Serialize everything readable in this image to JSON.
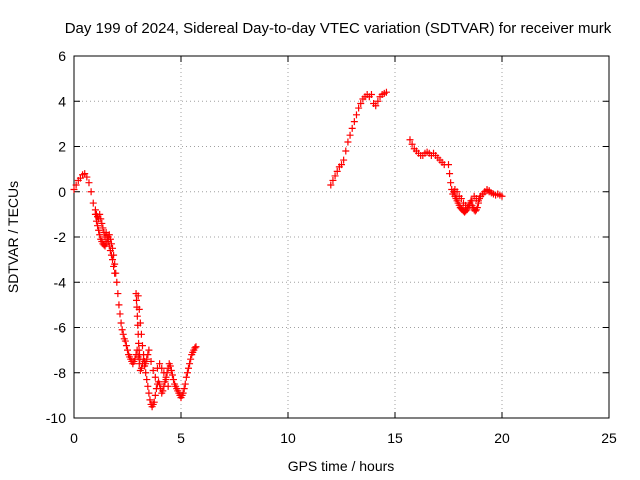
{
  "chart_data": {
    "type": "scatter",
    "title": "Day 199 of 2024, Sidereal Day-to-day VTEC variation (SDTVAR) for receiver murk",
    "xlabel": "GPS time / hours",
    "ylabel": "SDTVAR / TECUs",
    "xlim": [
      0,
      25
    ],
    "ylim": [
      -10,
      6
    ],
    "xticks": [
      0,
      5,
      10,
      15,
      20,
      25
    ],
    "yticks": [
      -10,
      -8,
      -6,
      -4,
      -2,
      0,
      2,
      4,
      6
    ],
    "grid": true,
    "marker": "plus",
    "series_color": "#ff0000",
    "series": [
      {
        "name": "segment-1",
        "x": [
          0.0,
          0.1,
          0.2,
          0.3,
          0.4,
          0.5,
          0.6,
          0.7,
          0.8,
          0.9,
          1.0,
          1.05,
          1.1,
          1.15,
          1.2,
          1.25,
          1.3,
          1.35,
          1.4,
          1.45,
          1.5,
          1.55,
          1.6,
          1.65,
          1.7,
          1.75,
          1.8,
          1.85,
          1.9,
          1.95,
          2.0,
          2.05,
          2.1,
          2.15,
          2.2,
          2.25,
          2.3,
          2.35,
          2.4,
          2.45,
          2.5,
          2.55,
          2.6,
          2.65,
          2.7,
          2.75,
          2.8,
          2.85,
          2.9,
          2.95,
          3.0,
          3.05,
          3.1,
          3.15,
          3.2,
          3.25,
          3.3,
          3.35,
          3.4,
          3.45,
          3.5,
          3.55,
          3.6,
          3.65,
          3.7,
          3.75,
          3.8,
          3.85,
          3.9,
          3.95,
          4.0,
          4.05,
          4.1,
          4.15,
          4.2,
          4.25,
          4.3,
          4.35,
          4.4,
          4.45,
          4.5,
          4.55,
          4.6,
          4.65,
          4.7,
          4.75,
          4.8,
          4.85,
          4.9,
          4.95,
          5.0,
          5.05,
          5.1,
          5.15,
          5.2,
          5.25,
          5.3,
          5.35,
          5.4,
          5.45,
          5.5,
          5.55,
          5.6,
          5.65,
          5.7,
          1.0,
          1.05,
          1.1,
          1.15,
          1.2,
          1.25,
          1.3,
          1.35,
          1.4,
          1.45,
          1.5,
          1.55,
          1.6,
          1.65,
          1.7,
          1.75,
          1.8,
          1.85,
          1.9,
          3.0,
          3.05,
          3.1,
          3.15,
          3.2,
          3.25,
          3.3,
          3.35,
          3.4,
          3.45,
          3.5,
          3.6,
          3.7,
          3.8,
          3.9,
          4.0,
          4.1,
          4.2,
          4.3,
          4.4,
          2.9,
          2.92,
          2.94,
          2.96,
          2.98,
          3.0,
          3.02,
          3.04,
          3.06,
          3.08
        ],
        "y": [
          0.1,
          0.3,
          0.5,
          0.6,
          0.75,
          0.8,
          0.65,
          0.4,
          0.0,
          -0.5,
          -1.0,
          -1.3,
          -1.5,
          -1.7,
          -1.9,
          -2.1,
          -2.2,
          -2.3,
          -2.35,
          -2.4,
          -2.3,
          -2.1,
          -2.0,
          -1.9,
          -2.1,
          -2.3,
          -2.5,
          -2.8,
          -3.2,
          -3.6,
          -4.0,
          -4.5,
          -5.0,
          -5.4,
          -5.8,
          -6.1,
          -6.3,
          -6.5,
          -6.6,
          -6.8,
          -7.0,
          -7.2,
          -7.3,
          -7.4,
          -7.5,
          -7.6,
          -7.5,
          -7.4,
          -7.2,
          -7.0,
          -7.3,
          -7.6,
          -7.9,
          -7.8,
          -7.6,
          -7.4,
          -7.7,
          -8.0,
          -8.3,
          -8.6,
          -8.9,
          -9.2,
          -9.4,
          -9.5,
          -9.4,
          -9.3,
          -9.0,
          -8.7,
          -8.5,
          -8.4,
          -8.5,
          -8.7,
          -8.9,
          -8.8,
          -8.6,
          -8.4,
          -8.2,
          -8.0,
          -7.8,
          -7.6,
          -7.7,
          -7.9,
          -8.1,
          -8.3,
          -8.5,
          -8.6,
          -8.7,
          -8.8,
          -8.9,
          -9.0,
          -9.1,
          -9.0,
          -8.9,
          -8.7,
          -8.5,
          -8.2,
          -8.0,
          -7.8,
          -7.6,
          -7.4,
          -7.2,
          -7.1,
          -7.0,
          -6.9,
          -6.85,
          -0.8,
          -1.0,
          -1.1,
          -1.2,
          -1.0,
          -1.2,
          -1.4,
          -1.6,
          -1.8,
          -2.0,
          -1.8,
          -2.0,
          -2.2,
          -2.4,
          -2.6,
          -2.8,
          -3.0,
          -3.3,
          -3.6,
          -4.6,
          -5.2,
          -5.8,
          -6.3,
          -6.8,
          -7.2,
          -7.5,
          -7.6,
          -7.4,
          -7.2,
          -7.0,
          -7.5,
          -7.9,
          -8.2,
          -7.8,
          -7.6,
          -7.8,
          -8.0,
          -8.3,
          -8.6,
          -4.5,
          -4.8,
          -5.1,
          -5.5,
          -5.9,
          -6.3,
          -6.7,
          -7.0,
          -7.2,
          -7.4
        ]
      },
      {
        "name": "segment-2",
        "x": [
          12.0,
          12.1,
          12.2,
          12.3,
          12.4,
          12.5,
          12.6,
          12.7,
          12.8,
          12.9,
          13.0,
          13.1,
          13.2,
          13.3,
          13.4,
          13.5,
          13.6,
          13.7,
          13.8,
          13.9,
          14.0,
          14.1,
          14.2,
          14.3,
          14.4,
          14.5,
          14.6
        ],
        "y": [
          0.3,
          0.5,
          0.7,
          0.9,
          1.1,
          1.2,
          1.4,
          1.8,
          2.2,
          2.5,
          2.8,
          3.1,
          3.4,
          3.7,
          3.9,
          4.1,
          4.2,
          4.3,
          4.2,
          4.3,
          3.9,
          3.8,
          4.0,
          4.2,
          4.3,
          4.35,
          4.4
        ]
      },
      {
        "name": "segment-3",
        "x": [
          15.7,
          15.8,
          15.9,
          16.0,
          16.1,
          16.2,
          16.3,
          16.4,
          16.5,
          16.6,
          16.7,
          16.8,
          16.9,
          17.0,
          17.1,
          17.2,
          17.3,
          17.5,
          17.55,
          17.6,
          17.65,
          17.7,
          17.75,
          17.8,
          17.85,
          17.9,
          17.95,
          18.0,
          18.05,
          18.1,
          18.15,
          18.2,
          18.25,
          18.3,
          18.35,
          18.4,
          18.45,
          18.5,
          18.55,
          18.6,
          18.65,
          18.7,
          18.75,
          18.8,
          18.85,
          18.9,
          18.95,
          19.0,
          19.1,
          19.2,
          19.3,
          19.4,
          19.5,
          19.6,
          19.7,
          19.8,
          19.9,
          20.0,
          17.8,
          17.9,
          18.0,
          18.1,
          18.2,
          18.3,
          18.4,
          18.5,
          18.6,
          18.7,
          18.8,
          18.9,
          19.0,
          19.1,
          19.2,
          19.3,
          19.4
        ],
        "y": [
          2.3,
          2.1,
          1.9,
          1.8,
          1.7,
          1.6,
          1.6,
          1.7,
          1.75,
          1.7,
          1.6,
          1.7,
          1.6,
          1.5,
          1.4,
          1.3,
          1.2,
          1.2,
          0.8,
          0.4,
          0.1,
          -0.1,
          0.0,
          -0.2,
          -0.3,
          -0.4,
          -0.5,
          -0.6,
          -0.7,
          -0.75,
          -0.8,
          -0.85,
          -0.9,
          -0.85,
          -0.8,
          -0.7,
          -0.6,
          -0.5,
          -0.4,
          -0.6,
          -0.7,
          -0.8,
          -0.85,
          -0.8,
          -0.7,
          -0.5,
          -0.3,
          -0.2,
          -0.1,
          0.0,
          0.05,
          0.0,
          -0.05,
          -0.1,
          -0.15,
          -0.1,
          -0.15,
          -0.2,
          0.1,
          0.0,
          -0.2,
          -0.3,
          -0.5,
          -0.6,
          -0.7,
          -0.6,
          -0.4,
          -0.2,
          -0.3,
          -0.4,
          -0.2,
          -0.1,
          0.0,
          0.1,
          0.05
        ]
      }
    ]
  }
}
